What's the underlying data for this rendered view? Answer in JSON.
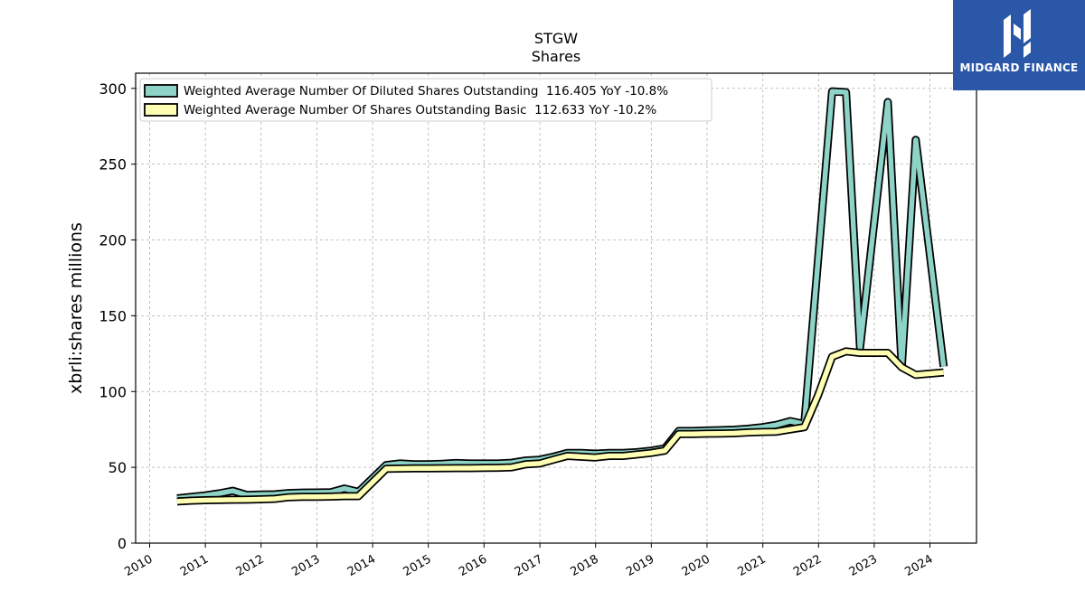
{
  "chart_data": {
    "type": "line",
    "title": "STGW",
    "subtitle": "Shares",
    "xlabel": "",
    "ylabel": "xbrli:shares millions",
    "xlim": [
      "2009-10-01",
      "2024-11-01"
    ],
    "ylim": [
      0,
      310
    ],
    "yticks": [
      0,
      50,
      100,
      150,
      200,
      250,
      300
    ],
    "xticks": [
      "2010",
      "2011",
      "2012",
      "2013",
      "2014",
      "2015",
      "2016",
      "2017",
      "2018",
      "2019",
      "2020",
      "2021",
      "2022",
      "2023",
      "2024"
    ],
    "grid": true,
    "legend_position": "top-left",
    "series": [
      {
        "name": "Weighted Average Number Of Diluted Shares Outstanding  116.405 YoY -10.8%",
        "color": "#8dd3c7",
        "points": [
          [
            "2010-06-30",
            29.5
          ],
          [
            "2010-09-30",
            30.5
          ],
          [
            "2010-12-31",
            31.5
          ],
          [
            "2011-03-31",
            32.8
          ],
          [
            "2011-06-30",
            34.5
          ],
          [
            "2011-09-30",
            31.8
          ],
          [
            "2011-12-31",
            32.0
          ],
          [
            "2012-03-31",
            32.2
          ],
          [
            "2012-06-30",
            33.0
          ],
          [
            "2012-09-30",
            33.3
          ],
          [
            "2012-12-31",
            33.4
          ],
          [
            "2013-03-31",
            33.5
          ],
          [
            "2013-06-30",
            36.0
          ],
          [
            "2013-09-30",
            33.8
          ],
          [
            "2014-03-31",
            51.5
          ],
          [
            "2014-06-30",
            52.5
          ],
          [
            "2014-09-30",
            52.0
          ],
          [
            "2014-12-31",
            52.0
          ],
          [
            "2015-03-31",
            52.3
          ],
          [
            "2015-06-30",
            52.8
          ],
          [
            "2015-09-30",
            52.5
          ],
          [
            "2015-12-31",
            52.5
          ],
          [
            "2016-03-31",
            52.5
          ],
          [
            "2016-06-30",
            53.0
          ],
          [
            "2016-09-30",
            54.5
          ],
          [
            "2016-12-31",
            55.0
          ],
          [
            "2017-03-31",
            57.0
          ],
          [
            "2017-06-30",
            59.5
          ],
          [
            "2017-09-30",
            59.5
          ],
          [
            "2017-12-31",
            59.0
          ],
          [
            "2018-03-31",
            59.5
          ],
          [
            "2018-06-30",
            59.5
          ],
          [
            "2018-09-30",
            60.0
          ],
          [
            "2018-12-31",
            61.0
          ],
          [
            "2019-03-31",
            62.5
          ],
          [
            "2019-06-30",
            74.0
          ],
          [
            "2019-09-30",
            74.0
          ],
          [
            "2019-12-31",
            74.3
          ],
          [
            "2020-03-31",
            74.5
          ],
          [
            "2020-06-30",
            74.8
          ],
          [
            "2020-09-30",
            75.5
          ],
          [
            "2020-12-31",
            76.5
          ],
          [
            "2021-03-31",
            78.0
          ],
          [
            "2021-06-30",
            80.5
          ],
          [
            "2021-09-30",
            78.5
          ],
          [
            "2022-03-31",
            298.0
          ],
          [
            "2022-06-30",
            297.5
          ],
          [
            "2022-09-30",
            129.0
          ],
          [
            "2023-03-31",
            291.0
          ],
          [
            "2023-06-30",
            116.0
          ],
          [
            "2023-09-30",
            266.0
          ],
          [
            "2024-03-31",
            116.405
          ]
        ]
      },
      {
        "name": "Weighted Average Number Of Shares Outstanding Basic  112.633 YoY -10.2%",
        "color": "#ffffb3",
        "points": [
          [
            "2010-06-30",
            27.5
          ],
          [
            "2010-09-30",
            28.0
          ],
          [
            "2010-12-31",
            28.3
          ],
          [
            "2011-03-31",
            28.5
          ],
          [
            "2011-06-30",
            28.6
          ],
          [
            "2011-09-30",
            28.7
          ],
          [
            "2011-12-31",
            28.9
          ],
          [
            "2012-03-31",
            29.2
          ],
          [
            "2012-06-30",
            30.3
          ],
          [
            "2012-09-30",
            30.5
          ],
          [
            "2012-12-31",
            30.6
          ],
          [
            "2013-03-31",
            30.7
          ],
          [
            "2013-06-30",
            31.0
          ],
          [
            "2013-09-30",
            31.0
          ],
          [
            "2014-03-31",
            49.0
          ],
          [
            "2014-06-30",
            49.2
          ],
          [
            "2014-09-30",
            49.3
          ],
          [
            "2014-12-31",
            49.3
          ],
          [
            "2015-03-31",
            49.4
          ],
          [
            "2015-06-30",
            49.5
          ],
          [
            "2015-09-30",
            49.5
          ],
          [
            "2015-12-31",
            49.6
          ],
          [
            "2016-03-31",
            49.7
          ],
          [
            "2016-06-30",
            50.0
          ],
          [
            "2016-09-30",
            52.0
          ],
          [
            "2016-12-31",
            52.5
          ],
          [
            "2017-03-31",
            55.0
          ],
          [
            "2017-06-30",
            57.5
          ],
          [
            "2017-09-30",
            57.0
          ],
          [
            "2017-12-31",
            56.5
          ],
          [
            "2018-03-31",
            57.5
          ],
          [
            "2018-06-30",
            57.5
          ],
          [
            "2018-09-30",
            58.5
          ],
          [
            "2018-12-31",
            59.5
          ],
          [
            "2019-03-31",
            61.0
          ],
          [
            "2019-06-30",
            72.0
          ],
          [
            "2019-09-30",
            72.0
          ],
          [
            "2019-12-31",
            72.2
          ],
          [
            "2020-03-31",
            72.3
          ],
          [
            "2020-06-30",
            72.5
          ],
          [
            "2020-09-30",
            73.0
          ],
          [
            "2020-12-31",
            73.3
          ],
          [
            "2021-03-31",
            73.5
          ],
          [
            "2021-06-30",
            75.0
          ],
          [
            "2021-09-30",
            76.5
          ],
          [
            "2021-12-31",
            98.0
          ],
          [
            "2022-03-31",
            123.0
          ],
          [
            "2022-06-30",
            126.5
          ],
          [
            "2022-09-30",
            125.5
          ],
          [
            "2023-03-31",
            125.5
          ],
          [
            "2023-06-30",
            116.0
          ],
          [
            "2023-09-30",
            111.0
          ],
          [
            "2024-03-31",
            112.633
          ]
        ]
      }
    ]
  },
  "logo": {
    "text": "MIDGARD FINANCE",
    "background": "#2b57a8"
  }
}
